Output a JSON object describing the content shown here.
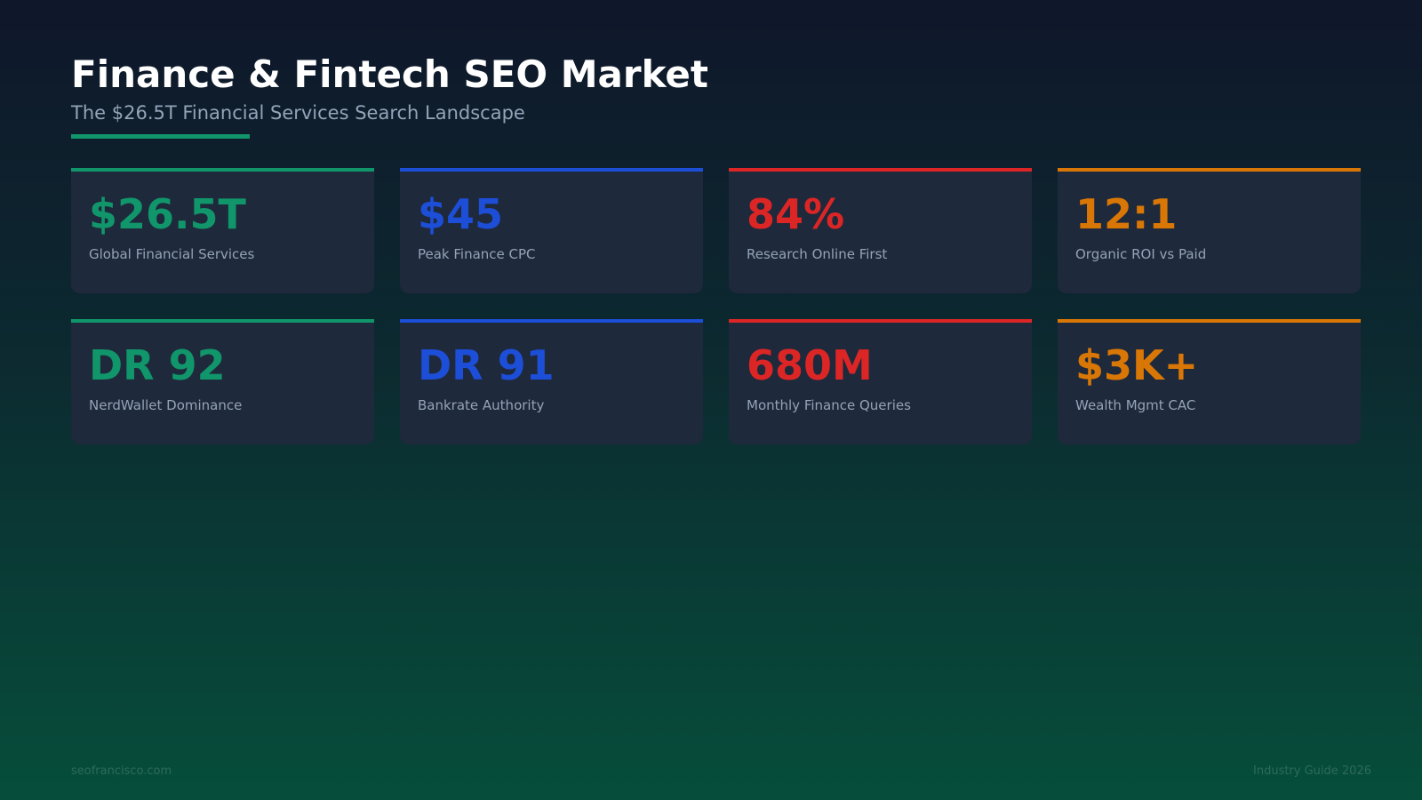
{
  "header": {
    "title": "Finance & Fintech SEO Market",
    "subtitle": "The $26.5T Financial Services Search Landscape",
    "accent_color": "#10966a"
  },
  "cards": [
    {
      "value": "$26.5T",
      "label": "Global Financial Services",
      "color": "#10966a"
    },
    {
      "value": "$45",
      "label": "Peak Finance CPC",
      "color": "#1d4ed8"
    },
    {
      "value": "84%",
      "label": "Research Online First",
      "color": "#dc2626"
    },
    {
      "value": "12:1",
      "label": "Organic ROI vs Paid",
      "color": "#d97706"
    },
    {
      "value": "DR 92",
      "label": "NerdWallet Dominance",
      "color": "#10966a"
    },
    {
      "value": "DR 91",
      "label": "Bankrate Authority",
      "color": "#1d4ed8"
    },
    {
      "value": "680M",
      "label": "Monthly Finance Queries",
      "color": "#dc2626"
    },
    {
      "value": "$3K+",
      "label": "Wealth Mgmt CAC",
      "color": "#d97706"
    }
  ],
  "footer": {
    "left": "seofrancisco.com",
    "right": "Industry Guide 2026"
  }
}
